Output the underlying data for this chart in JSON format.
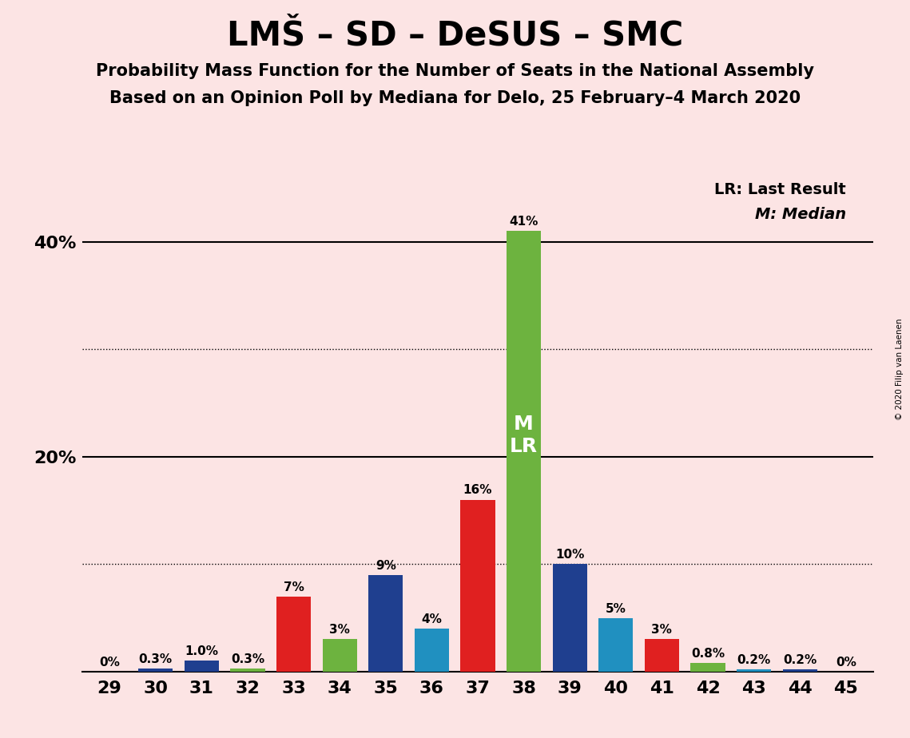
{
  "title": "LMŠ – SD – DeSUS – SMC",
  "subtitle1": "Probability Mass Function for the Number of Seats in the National Assembly",
  "subtitle2": "Based on an Opinion Poll by Mediana for Delo, 25 February–4 March 2020",
  "watermark": "© 2020 Filip van Laenen",
  "legend_lr": "LR: Last Result",
  "legend_m": "M: Median",
  "seats": [
    29,
    30,
    31,
    32,
    33,
    34,
    35,
    36,
    37,
    38,
    39,
    40,
    41,
    42,
    43,
    44,
    45
  ],
  "values": [
    0.0,
    0.3,
    1.0,
    0.3,
    7.0,
    3.0,
    9.0,
    4.0,
    16.0,
    41.0,
    10.0,
    5.0,
    3.0,
    0.8,
    0.2,
    0.2,
    0.0
  ],
  "labels": [
    "0%",
    "0.3%",
    "1.0%",
    "0.3%",
    "7%",
    "3%",
    "9%",
    "4%",
    "16%",
    "41%",
    "10%",
    "5%",
    "3%",
    "0.8%",
    "0.2%",
    "0.2%",
    "0%"
  ],
  "bar_colors": [
    "#6db33f",
    "#1f3f8f",
    "#1f3f8f",
    "#6db33f",
    "#e02020",
    "#6db33f",
    "#1f3f8f",
    "#2090c0",
    "#e02020",
    "#6db33f",
    "#1f3f8f",
    "#2090c0",
    "#e02020",
    "#6db33f",
    "#2090c0",
    "#1f3f8f",
    "#6db33f"
  ],
  "median_seat": 38,
  "lr_seat": 38,
  "background_color": "#fce4e4",
  "ytick_vals": [
    0,
    20,
    40
  ],
  "ytick_labels_shown": [
    "20%",
    "40%"
  ],
  "ylim": [
    0,
    46
  ],
  "dotted_lines": [
    10,
    30
  ],
  "solid_lines": [
    20,
    40
  ],
  "title_fontsize": 30,
  "subtitle_fontsize": 15,
  "tick_fontsize": 16,
  "label_fontsize": 11,
  "legend_fontsize": 14,
  "mlr_fontsize": 18
}
